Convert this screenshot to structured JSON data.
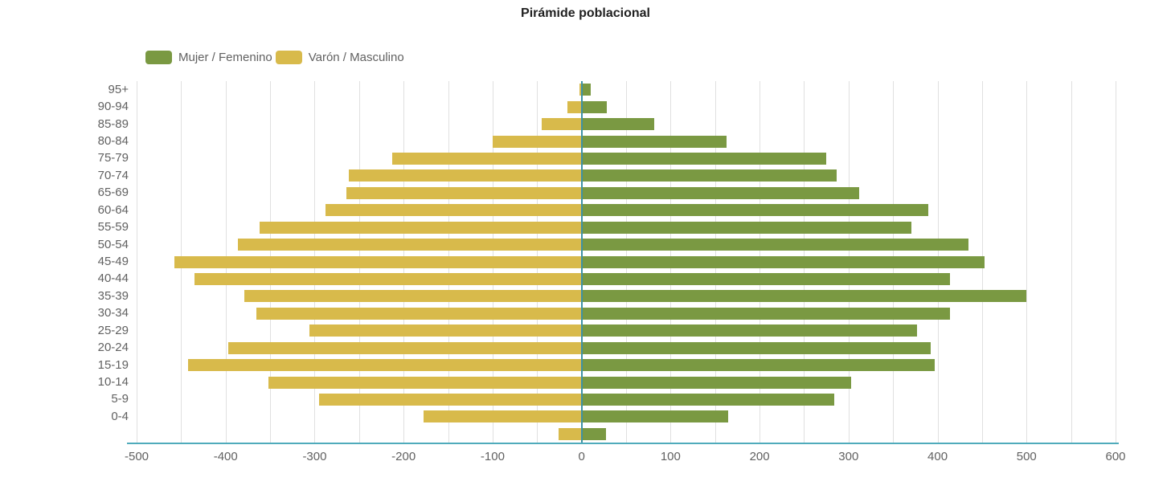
{
  "title": "Pirámide poblacional",
  "legend": [
    {
      "label": "Mujer / Femenino",
      "color": "#7a9942"
    },
    {
      "label": "Varón / Masculino",
      "color": "#d8ba4b"
    }
  ],
  "chart_data": {
    "type": "bar",
    "orientation": "horizontal",
    "title": "Pirámide poblacional",
    "categories": [
      "95+",
      "90-94",
      "85-89",
      "80-84",
      "75-79",
      "70-74",
      "65-69",
      "60-64",
      "55-59",
      "50-54",
      "45-49",
      "40-44",
      "35-39",
      "30-34",
      "25-29",
      "20-24",
      "15-19",
      "10-14",
      "5-9",
      "0-4",
      ""
    ],
    "series": [
      {
        "name": "Mujer / Femenino",
        "color": "#7a9942",
        "values": [
          10,
          28,
          82,
          163,
          275,
          287,
          312,
          390,
          371,
          435,
          453,
          414,
          500,
          414,
          377,
          392,
          397,
          303,
          284,
          165,
          27
        ]
      },
      {
        "name": "Varón / Masculino",
        "color": "#d8ba4b",
        "values": [
          -2,
          -16,
          -45,
          -100,
          -213,
          -262,
          -264,
          -288,
          -362,
          -386,
          -458,
          -435,
          -379,
          -365,
          -306,
          -397,
          -442,
          -352,
          -295,
          -178,
          -26
        ]
      }
    ],
    "xlim": [
      -500,
      600
    ],
    "x_tick_step": 100,
    "x_tick_labels": [
      "-500",
      "-400",
      "-300",
      "-200",
      "-100",
      "0",
      "100",
      "200",
      "300",
      "400",
      "500",
      "600"
    ],
    "grid": true,
    "grid_step": 50,
    "grid_color": "#e0e0e0",
    "zero_line_color": "#3e92a3",
    "axis_line_color": "#4fabbb",
    "legend_position": "top-left",
    "xlabel": "",
    "ylabel": ""
  }
}
